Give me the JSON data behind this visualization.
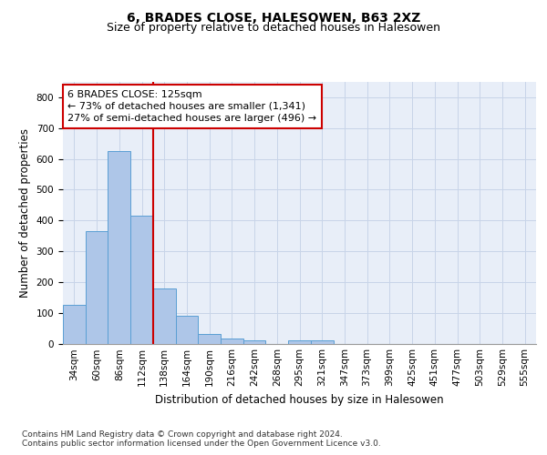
{
  "title": "6, BRADES CLOSE, HALESOWEN, B63 2XZ",
  "subtitle": "Size of property relative to detached houses in Halesowen",
  "xlabel": "Distribution of detached houses by size in Halesowen",
  "ylabel": "Number of detached properties",
  "categories": [
    "34sqm",
    "60sqm",
    "86sqm",
    "112sqm",
    "138sqm",
    "164sqm",
    "190sqm",
    "216sqm",
    "242sqm",
    "268sqm",
    "295sqm",
    "321sqm",
    "347sqm",
    "373sqm",
    "399sqm",
    "425sqm",
    "451sqm",
    "477sqm",
    "503sqm",
    "529sqm",
    "555sqm"
  ],
  "values": [
    125,
    365,
    625,
    415,
    178,
    90,
    32,
    15,
    10,
    0,
    10,
    10,
    0,
    0,
    0,
    0,
    0,
    0,
    0,
    0,
    0
  ],
  "bar_color": "#aec6e8",
  "bar_edge_color": "#5a9fd4",
  "property_line_color": "#cc0000",
  "property_line_x": 3.5,
  "annotation_line1": "6 BRADES CLOSE: 125sqm",
  "annotation_line2": "← 73% of detached houses are smaller (1,341)",
  "annotation_line3": "27% of semi-detached houses are larger (496) →",
  "annotation_box_color": "#cc0000",
  "ylim": [
    0,
    850
  ],
  "yticks": [
    0,
    100,
    200,
    300,
    400,
    500,
    600,
    700,
    800
  ],
  "grid_color": "#c8d4e8",
  "background_color": "#e8eef8",
  "footnote1": "Contains HM Land Registry data © Crown copyright and database right 2024.",
  "footnote2": "Contains public sector information licensed under the Open Government Licence v3.0.",
  "title_fontsize": 10,
  "subtitle_fontsize": 9,
  "xlabel_fontsize": 8.5,
  "ylabel_fontsize": 8.5,
  "tick_fontsize": 7.5,
  "annotation_fontsize": 8,
  "footnote_fontsize": 6.5
}
